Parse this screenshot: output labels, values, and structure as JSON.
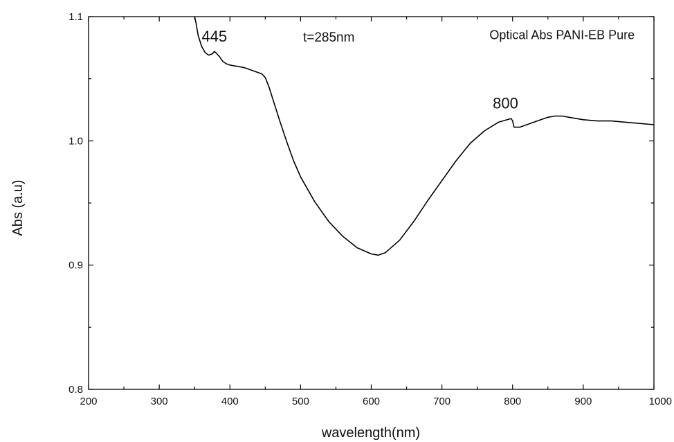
{
  "chart_data": {
    "type": "line",
    "title": "",
    "xlabel": "wavelength(nm)",
    "ylabel": "Abs (a.u)",
    "xlim": [
      200,
      1000
    ],
    "ylim": [
      0.8,
      1.1
    ],
    "x_ticks": [
      200,
      300,
      400,
      500,
      600,
      700,
      800,
      900,
      1000
    ],
    "y_ticks": [
      0.8,
      0.9,
      1.0,
      1.1
    ],
    "x_tick_labels": [
      "200",
      "300",
      "400",
      "500",
      "600",
      "700",
      "800",
      "900",
      "1000"
    ],
    "y_tick_labels": [
      "0.8",
      "0.9",
      "1.0",
      "1.1"
    ],
    "grid": false,
    "legend": "none",
    "line_color": "#000000",
    "series": [
      {
        "x": [
          350,
          352,
          355,
          360,
          365,
          370,
          375,
          378,
          380,
          385,
          390,
          395,
          400,
          410,
          420,
          430,
          440,
          445,
          450,
          455,
          460,
          470,
          480,
          490,
          500,
          520,
          540,
          560,
          580,
          600,
          610,
          620,
          640,
          660,
          680,
          700,
          720,
          740,
          760,
          780,
          798,
          800,
          802,
          810,
          820,
          830,
          840,
          850,
          860,
          870,
          880,
          900,
          920,
          940,
          960,
          980,
          1000
        ],
        "y": [
          1.1,
          1.095,
          1.085,
          1.076,
          1.071,
          1.069,
          1.07,
          1.072,
          1.071,
          1.068,
          1.064,
          1.062,
          1.061,
          1.06,
          1.059,
          1.057,
          1.055,
          1.054,
          1.051,
          1.044,
          1.035,
          1.017,
          1.0,
          0.984,
          0.971,
          0.951,
          0.935,
          0.923,
          0.914,
          0.909,
          0.908,
          0.91,
          0.92,
          0.935,
          0.952,
          0.968,
          0.984,
          0.998,
          1.008,
          1.015,
          1.018,
          1.016,
          1.011,
          1.011,
          1.013,
          1.015,
          1.017,
          1.019,
          1.02,
          1.02,
          1.019,
          1.017,
          1.016,
          1.016,
          1.015,
          1.014,
          1.013
        ]
      }
    ],
    "annotations": [
      {
        "text": "445",
        "x": 378,
        "y": 1.08
      },
      {
        "text": "t=285nm",
        "x": 540,
        "y": 1.08
      },
      {
        "text": "Optical Abs PANI-EB Pure",
        "x": 870,
        "y": 1.082
      },
      {
        "text": "800",
        "x": 790,
        "y": 1.026
      }
    ]
  }
}
